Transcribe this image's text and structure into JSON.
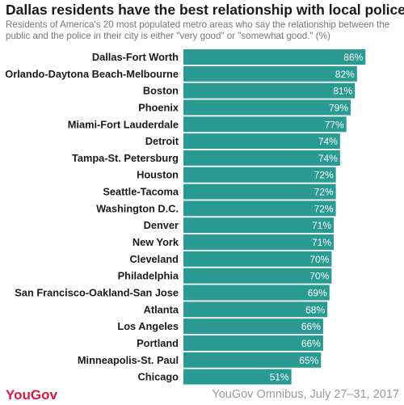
{
  "title": "Dallas residents have the best relationship with local police",
  "subtitle": "Residents of America's 20 most populated metro areas who say the relationship between the public and the police in their city is either \"very good\" or \"somewhat good.\" (%)",
  "colors": {
    "bar": "#2a9b93",
    "label": "#ffffff",
    "brand": "#e3153e"
  },
  "footer": {
    "brand": "YouGov",
    "source": "YouGov Omnibus, July 27–31, 2017"
  },
  "chart_data": {
    "type": "bar",
    "orientation": "horizontal",
    "title": "Dallas residents have the best relationship with local police",
    "xlim": [
      0,
      100
    ],
    "grid": false,
    "legend": "none",
    "categories": [
      "Dallas-Fort Worth",
      "Orlando-Daytona Beach-Melbourne",
      "Boston",
      "Phoenix",
      "Miami-Fort Lauderdale",
      "Detroit",
      "Tampa-St. Petersburg",
      "Houston",
      "Seattle-Tacoma",
      "Washington D.C.",
      "Denver",
      "New York",
      "Cleveland",
      "Philadelphia",
      "San Francisco-Oakland-San Jose",
      "Atlanta",
      "Los Angeles",
      "Portland",
      "Minneapolis-St. Paul",
      "Chicago"
    ],
    "values": [
      86,
      82,
      81,
      79,
      77,
      74,
      74,
      72,
      72,
      72,
      71,
      71,
      70,
      70,
      69,
      68,
      66,
      66,
      65,
      51
    ],
    "value_labels": [
      "86%",
      "82%",
      "81%",
      "79%",
      "77%",
      "74%",
      "74%",
      "72%",
      "72%",
      "72%",
      "71%",
      "71%",
      "70%",
      "70%",
      "69%",
      "68%",
      "66%",
      "66%",
      "65%",
      "51%"
    ]
  }
}
